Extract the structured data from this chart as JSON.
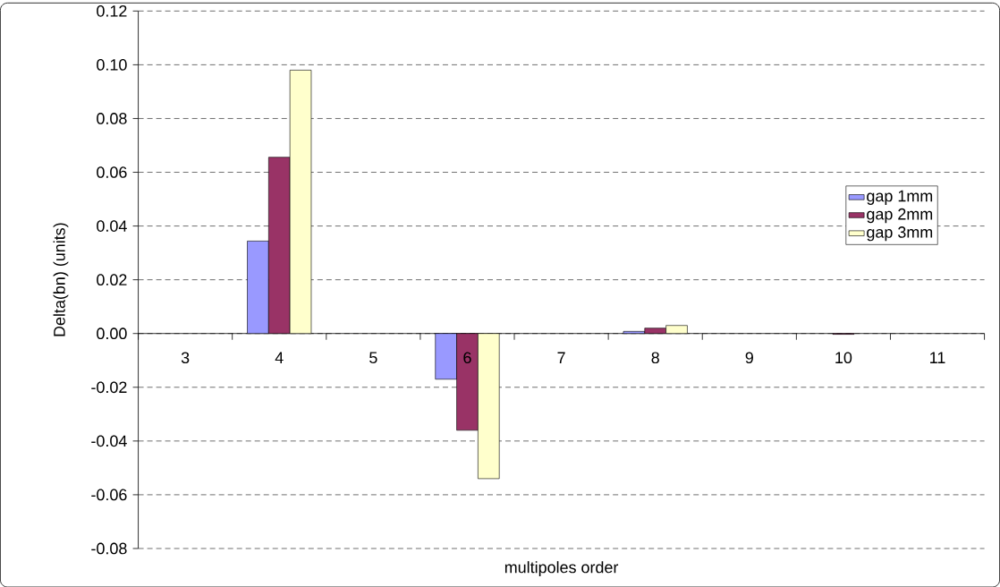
{
  "chart_data": {
    "type": "bar",
    "xlabel": "multipoles order",
    "ylabel": "Delta(bn) (units)",
    "categories": [
      "3",
      "4",
      "5",
      "6",
      "7",
      "8",
      "9",
      "10",
      "11"
    ],
    "series": [
      {
        "name": "gap 1mm",
        "color": "#9999ff",
        "values": [
          null,
          0.0344,
          null,
          -0.017,
          null,
          0.0008,
          null,
          null,
          null
        ]
      },
      {
        "name": "gap 2mm",
        "color": "#993366",
        "values": [
          null,
          0.0656,
          null,
          -0.036,
          null,
          0.002,
          null,
          -0.0003,
          null
        ]
      },
      {
        "name": "gap 3mm",
        "color": "#ffffcc",
        "values": [
          null,
          0.098,
          null,
          -0.054,
          null,
          0.003,
          null,
          null,
          null
        ]
      }
    ],
    "ylim": [
      -0.08,
      0.12
    ],
    "yticks": [
      {
        "value": -0.08,
        "label": "-0.08"
      },
      {
        "value": -0.06,
        "label": "-0.06"
      },
      {
        "value": -0.04,
        "label": "-0.04"
      },
      {
        "value": -0.02,
        "label": "-0.02"
      },
      {
        "value": 0,
        "label": "0.00"
      },
      {
        "value": 0.02,
        "label": "0.02"
      },
      {
        "value": 0.04,
        "label": "0.04"
      },
      {
        "value": 0.06,
        "label": "0.06"
      },
      {
        "value": 0.08,
        "label": "0.08"
      },
      {
        "value": 0.1,
        "label": "0.10"
      },
      {
        "value": 0.12,
        "label": "0.12"
      }
    ],
    "grid": "y",
    "legend": "right"
  }
}
